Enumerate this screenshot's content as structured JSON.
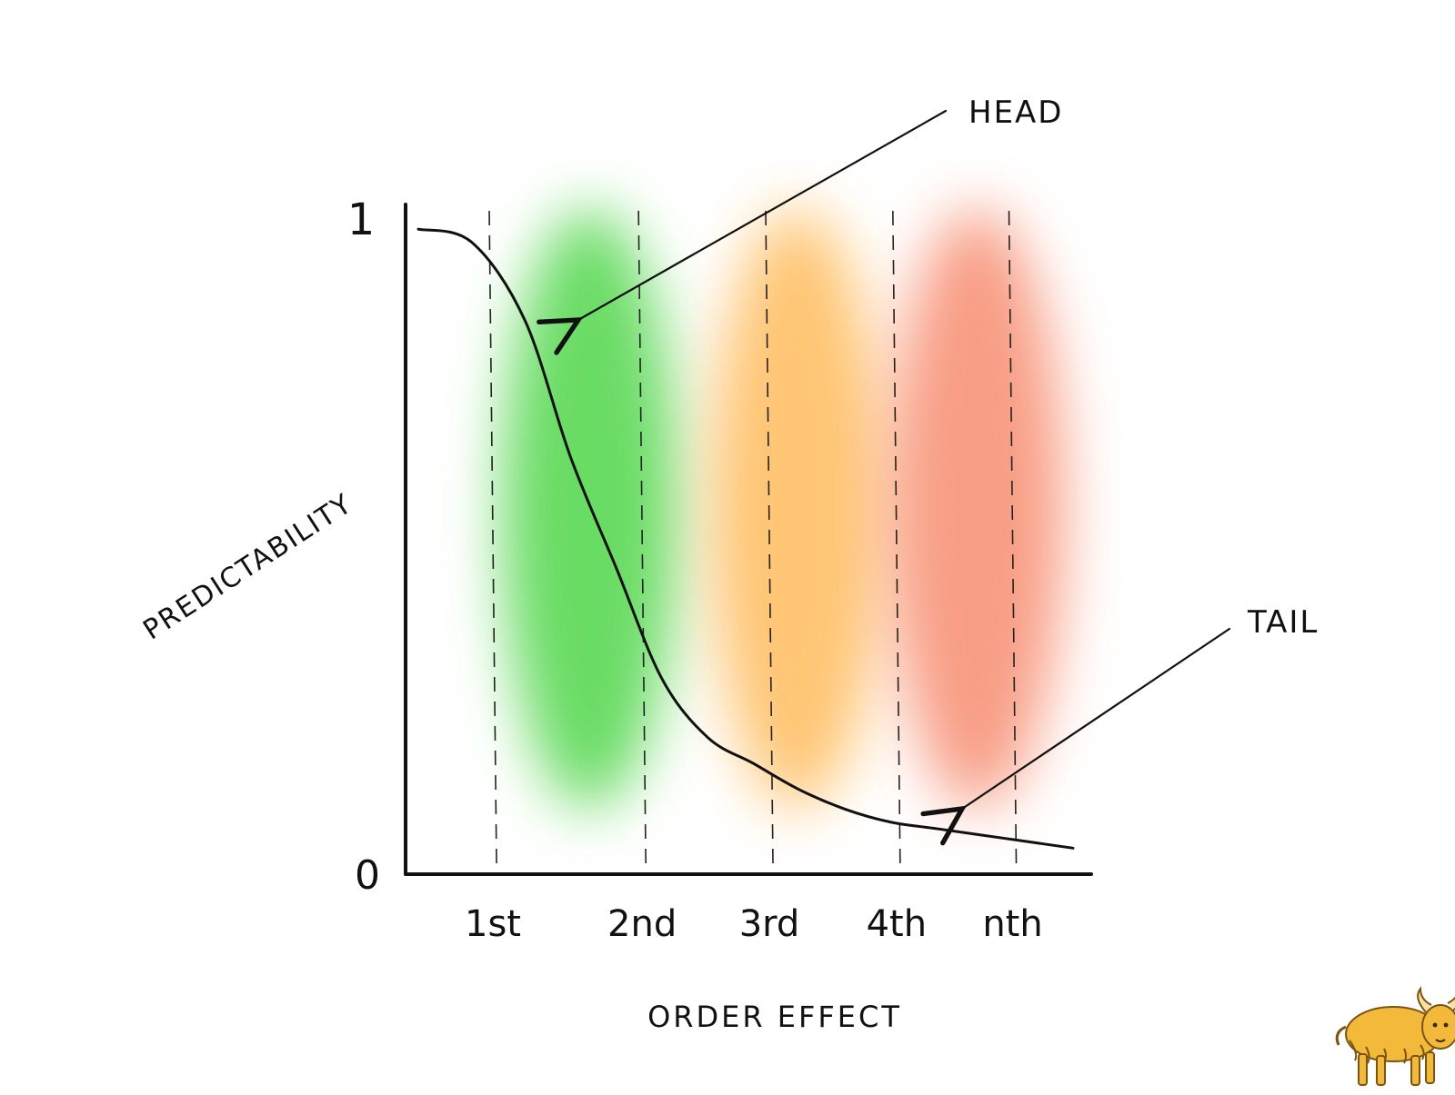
{
  "chart_data": {
    "type": "line",
    "title": "",
    "xlabel": "ORDER EFFECT",
    "ylabel": "PREDICTABILITY",
    "ylim": [
      0,
      1
    ],
    "y_ticks": [
      "0",
      "1"
    ],
    "categories": [
      "1st",
      "2nd",
      "3rd",
      "4th",
      "nth"
    ],
    "grid": "dashed vertical lines at each category",
    "legend": "none",
    "series": [
      {
        "x": [
          0.0,
          0.35,
          0.7,
          1.0,
          1.3,
          1.6,
          1.9,
          2.2,
          2.5,
          2.8,
          3.1,
          3.4,
          3.7,
          4.0,
          4.3
        ],
        "values": [
          0.99,
          0.97,
          0.85,
          0.64,
          0.47,
          0.3,
          0.21,
          0.17,
          0.13,
          0.1,
          0.08,
          0.07,
          0.06,
          0.05,
          0.04
        ]
      }
    ],
    "bands": [
      {
        "center_x": 1.3,
        "color": "#4fd64a"
      },
      {
        "center_x": 2.8,
        "color": "#ffbb5c"
      },
      {
        "center_x": 4.1,
        "color": "#f78c70"
      }
    ],
    "annotations": [
      {
        "text": "HEAD",
        "points_to_x": 1.55,
        "points_to_y": 0.86
      },
      {
        "text": "TAIL",
        "points_to_x": 4.15,
        "points_to_y": 0.09
      }
    ],
    "colors": {
      "line": "#111111",
      "axis": "#111111"
    }
  },
  "icons": {
    "mascot": "yak-icon"
  }
}
